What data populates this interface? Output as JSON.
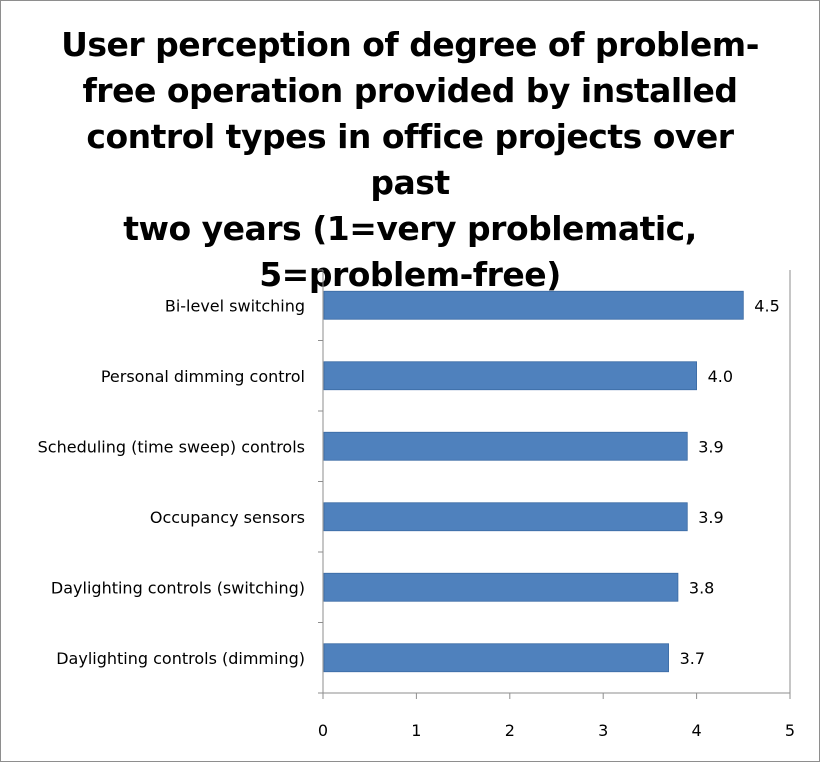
{
  "chart_data": {
    "type": "bar",
    "orientation": "horizontal",
    "title": "User perception of degree of problem-free operation provided by installed control types in office projects over past two years (1=very problematic, 5=problem-free)",
    "title_lines": [
      "User perception of degree of problem-",
      "free operation provided by installed",
      "control types in office projects over past",
      "two years (1=very problematic,",
      "5=problem-free)"
    ],
    "categories": [
      "Bi-level switching",
      "Personal dimming control",
      "Scheduling (time sweep)  controls",
      "Occupancy sensors",
      "Daylighting controls (switching)",
      "Daylighting controls (dimming)"
    ],
    "values": [
      4.5,
      4.0,
      3.9,
      3.9,
      3.8,
      3.7
    ],
    "data_labels": [
      "4.5",
      "4.0",
      "3.9",
      "3.9",
      "3.8",
      "3.7"
    ],
    "xlim": [
      0,
      5
    ],
    "x_ticks": [
      "0",
      "1",
      "2",
      "3",
      "4",
      "5"
    ],
    "xlabel": "",
    "ylabel": "",
    "grid": false,
    "legend": "none",
    "bar_color": "#4f81bd",
    "bar_border_color": "#3a6aa3"
  }
}
